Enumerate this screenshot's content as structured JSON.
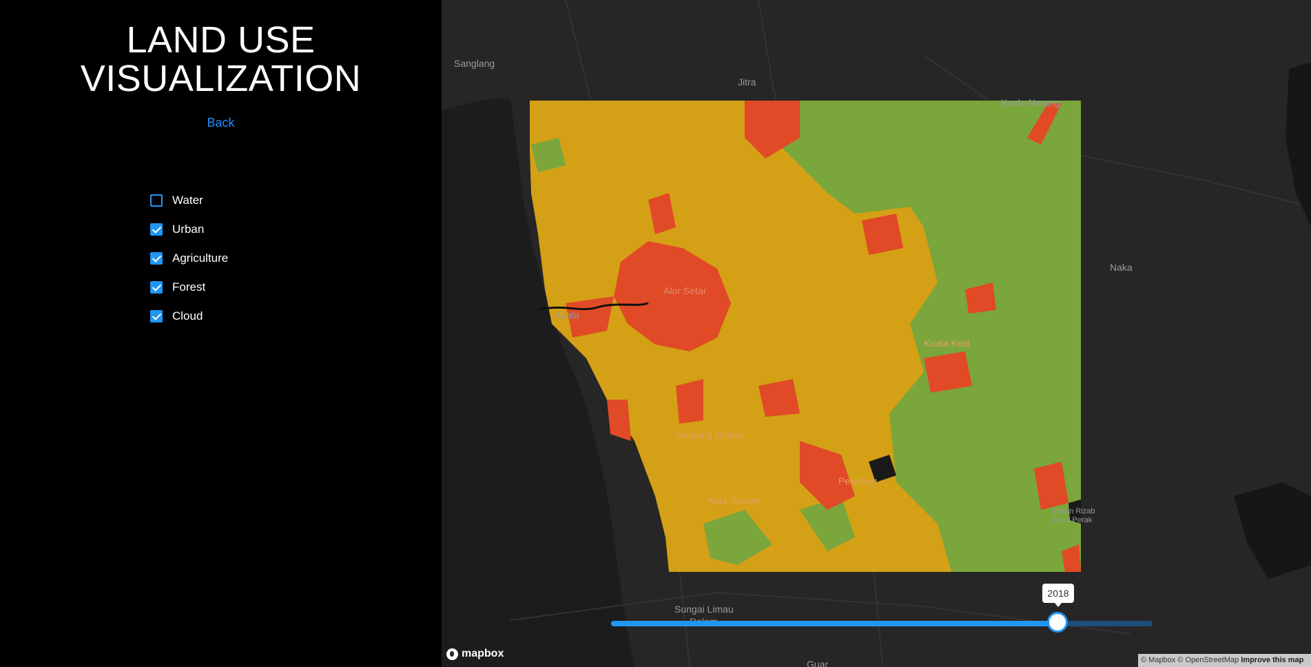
{
  "sidebar": {
    "title_line1": "LAND USE",
    "title_line2": "VISUALIZATION",
    "back_label": "Back",
    "layers": [
      {
        "label": "Water",
        "checked": false
      },
      {
        "label": "Urban",
        "checked": true
      },
      {
        "label": "Agriculture",
        "checked": true
      },
      {
        "label": "Forest",
        "checked": true
      },
      {
        "label": "Cloud",
        "checked": true
      }
    ]
  },
  "map": {
    "places": {
      "sanglang": "Sanglang",
      "jitra": "Jitra",
      "kuala_nerang": "Kuala Nerang",
      "naka": "Naka",
      "alor_setar": "Alor Setar",
      "kuala_kedah": "Kuala",
      "kuala_ketil": "Kuala Ketil",
      "simpang_empat": "Simpang Empat",
      "pendang": "Pendang",
      "kota_sarang": "Kota Sarang",
      "sungai_limau": "Sungai Limau",
      "dalam": "Dalam",
      "hutan_1": "Hutan Rizab",
      "hutan_2": "Bukit Perak",
      "guar": "Guar"
    },
    "colors": {
      "background": "#262626",
      "agriculture": "#d4a016",
      "urban": "#e04a26",
      "forest": "#7aa63c",
      "water": "#1a1a1a"
    },
    "slider": {
      "year_label": "2018",
      "fraction": 0.825
    },
    "logo_text": "mapbox",
    "attribution": {
      "text": "© Mapbox © OpenStreetMap",
      "improve": "Improve this map"
    }
  }
}
